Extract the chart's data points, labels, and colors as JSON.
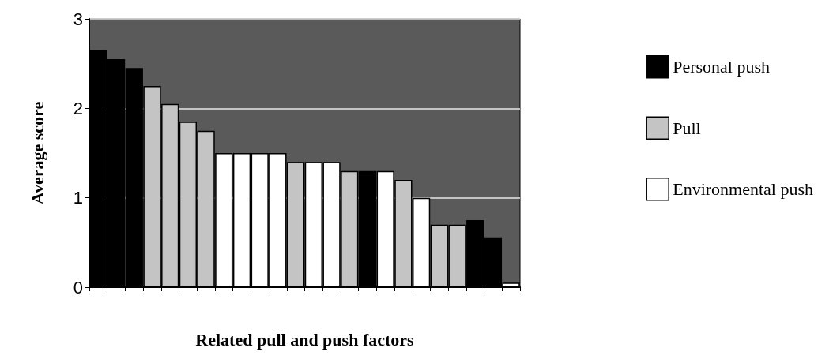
{
  "chart_data": {
    "type": "bar",
    "xlabel": "Related pull and push factors",
    "ylabel": "Average score",
    "categories": [
      null,
      null,
      null,
      null,
      null,
      null,
      null,
      null,
      null,
      null,
      null,
      null,
      null,
      null,
      null,
      null,
      null,
      null,
      null,
      null,
      null,
      null,
      null,
      null
    ],
    "series": [
      {
        "name": "Personal push",
        "color": "#000000",
        "values": [
          2.65,
          2.55,
          2.45,
          null,
          null,
          null,
          null,
          null,
          null,
          null,
          null,
          null,
          null,
          null,
          null,
          1.3,
          null,
          null,
          null,
          null,
          null,
          0.75,
          0.55,
          null
        ]
      },
      {
        "name": "Pull",
        "color": "#c4c4c4",
        "values": [
          null,
          null,
          null,
          2.25,
          2.05,
          1.85,
          1.75,
          null,
          null,
          null,
          null,
          1.4,
          null,
          null,
          1.3,
          null,
          null,
          1.2,
          null,
          0.7,
          0.7,
          null,
          null,
          null
        ]
      },
      {
        "name": "Environmental push",
        "color": "#ffffff",
        "values": [
          null,
          null,
          null,
          null,
          null,
          null,
          null,
          1.5,
          1.5,
          1.5,
          1.5,
          null,
          1.4,
          1.4,
          null,
          null,
          1.3,
          null,
          1.0,
          null,
          null,
          null,
          null,
          0.05
        ]
      }
    ],
    "ylim": [
      0,
      3
    ],
    "yticks": [
      0,
      1,
      2,
      3
    ],
    "grid": "y",
    "legend": "right"
  }
}
